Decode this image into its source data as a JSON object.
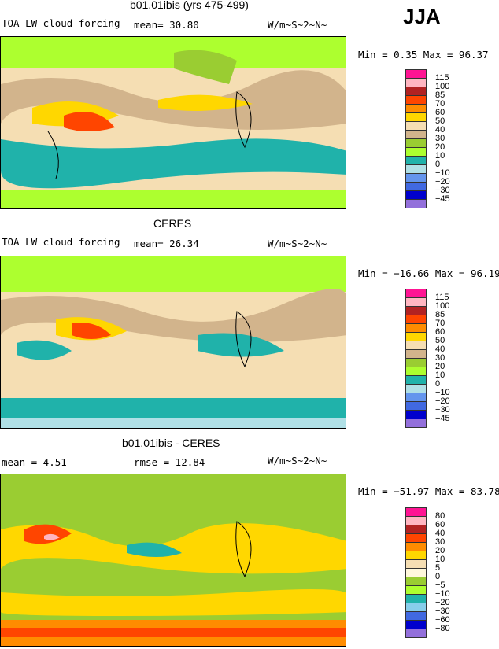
{
  "season": "JJA",
  "panels": [
    {
      "title": "b01.01ibis (yrs 475-499)",
      "left": "TOA LW cloud forcing",
      "middle": "mean=   30.80",
      "units": "W/m~S~2~N~",
      "stats": "Min =   0.35 Max =  96.37",
      "legend": [
        "115",
        "100",
        "85",
        "70",
        "60",
        "50",
        "40",
        "30",
        "20",
        "10",
        "0",
        "−10",
        "−20",
        "−30",
        "−45"
      ],
      "colors": [
        "#ff1493",
        "#ffb6c1",
        "#b22222",
        "#ff4500",
        "#ff8c00",
        "#ffd700",
        "#f5deb3",
        "#d2b48c",
        "#9acd32",
        "#adff2f",
        "#20b2aa",
        "#b0e0e6",
        "#6495ed",
        "#4169e1",
        "#0000cd",
        "#9370db"
      ]
    },
    {
      "title": "CERES",
      "left": "TOA LW cloud forcing",
      "middle": "mean=   26.34",
      "units": "W/m~S~2~N~",
      "stats": "Min = −16.66 Max =  96.19",
      "legend": [
        "115",
        "100",
        "85",
        "70",
        "60",
        "50",
        "40",
        "30",
        "20",
        "10",
        "0",
        "−10",
        "−20",
        "−30",
        "−45"
      ],
      "colors": [
        "#ff1493",
        "#ffb6c1",
        "#b22222",
        "#ff4500",
        "#ff8c00",
        "#ffd700",
        "#f5deb3",
        "#d2b48c",
        "#9acd32",
        "#adff2f",
        "#20b2aa",
        "#b0e0e6",
        "#6495ed",
        "#4169e1",
        "#0000cd",
        "#9370db"
      ]
    },
    {
      "title": "b01.01ibis - CERES",
      "left": "mean =    4.51",
      "middle": "rmse =   12.84",
      "units": "W/m~S~2~N~",
      "stats": "Min = −51.97 Max =  83.78",
      "legend": [
        "80",
        "60",
        "40",
        "30",
        "20",
        "10",
        "5",
        "0",
        "−5",
        "−10",
        "−20",
        "−30",
        "−60",
        "−80"
      ],
      "colors": [
        "#ff1493",
        "#ffb6c1",
        "#b22222",
        "#ff4500",
        "#ff8c00",
        "#ffd700",
        "#f5deb3",
        "#fff8dc",
        "#9acd32",
        "#adff2f",
        "#20b2aa",
        "#87ceeb",
        "#4169e1",
        "#0000cd",
        "#9370db"
      ]
    }
  ]
}
